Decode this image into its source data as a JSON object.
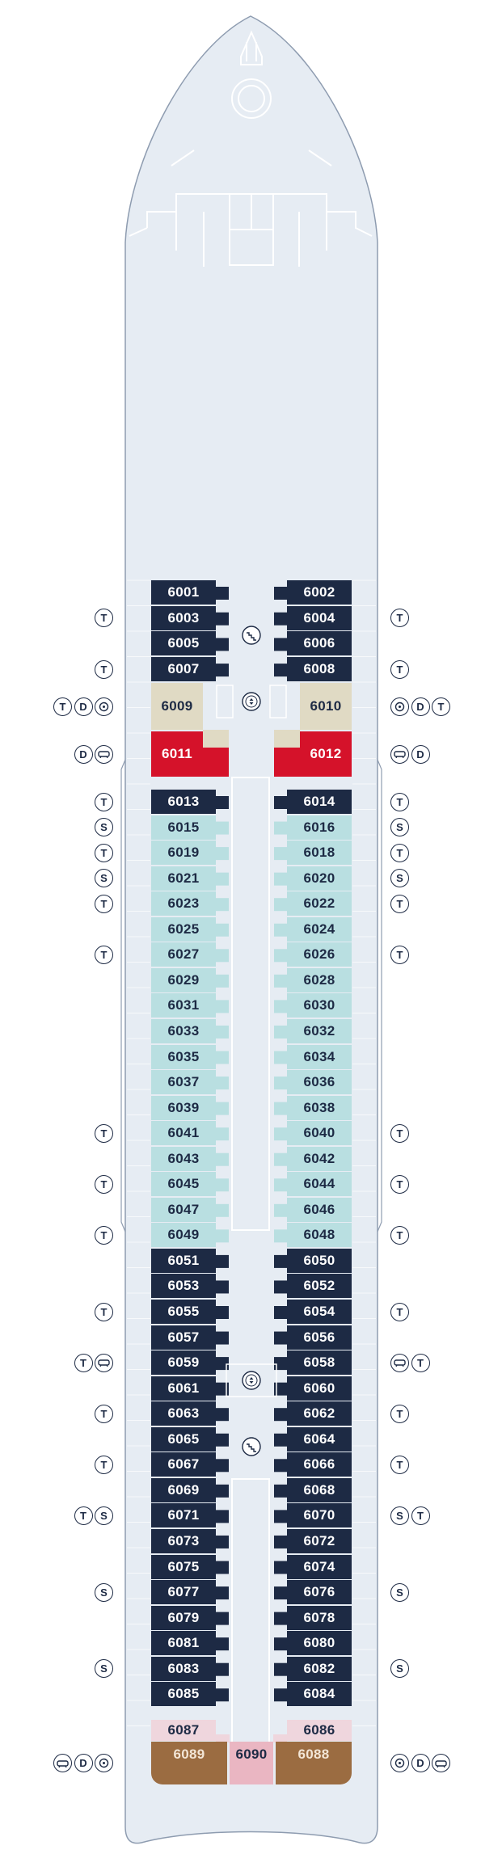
{
  "colors": {
    "hull": "#e6ecf3",
    "hull_outline": "#8e9cb0",
    "dark": "#1d2a44",
    "light_blue": "#b9dfe1",
    "beige": "#e0dac4",
    "red": "#d5122a",
    "pink": "#efd6dd",
    "pink_suite": "#eab6c2",
    "brown": "#9b6c41"
  },
  "legend_symbols": {
    "T": "T",
    "S": "S",
    "D": "D",
    "bathtub": "bathtub-icon",
    "spa": "spa-swirl-icon"
  },
  "left_cabins": [
    {
      "num": "6001",
      "style": "dark"
    },
    {
      "num": "6003",
      "style": "dark"
    },
    {
      "num": "6005",
      "style": "dark"
    },
    {
      "num": "6007",
      "style": "dark"
    },
    {
      "num": "6009",
      "style": "beige"
    },
    {
      "num": "6011",
      "style": "red"
    },
    {
      "num": "6013",
      "style": "dark"
    },
    {
      "num": "6015",
      "style": "light"
    },
    {
      "num": "6019",
      "style": "light"
    },
    {
      "num": "6021",
      "style": "light"
    },
    {
      "num": "6023",
      "style": "light"
    },
    {
      "num": "6025",
      "style": "light"
    },
    {
      "num": "6027",
      "style": "light"
    },
    {
      "num": "6029",
      "style": "light"
    },
    {
      "num": "6031",
      "style": "light"
    },
    {
      "num": "6033",
      "style": "light"
    },
    {
      "num": "6035",
      "style": "light"
    },
    {
      "num": "6037",
      "style": "light"
    },
    {
      "num": "6039",
      "style": "light"
    },
    {
      "num": "6041",
      "style": "light"
    },
    {
      "num": "6043",
      "style": "light"
    },
    {
      "num": "6045",
      "style": "light"
    },
    {
      "num": "6047",
      "style": "light"
    },
    {
      "num": "6049",
      "style": "light"
    },
    {
      "num": "6051",
      "style": "dark"
    },
    {
      "num": "6053",
      "style": "dark"
    },
    {
      "num": "6055",
      "style": "dark"
    },
    {
      "num": "6057",
      "style": "dark"
    },
    {
      "num": "6059",
      "style": "dark"
    },
    {
      "num": "6061",
      "style": "dark"
    },
    {
      "num": "6063",
      "style": "dark"
    },
    {
      "num": "6065",
      "style": "dark"
    },
    {
      "num": "6067",
      "style": "dark"
    },
    {
      "num": "6069",
      "style": "dark"
    },
    {
      "num": "6071",
      "style": "dark"
    },
    {
      "num": "6073",
      "style": "dark"
    },
    {
      "num": "6075",
      "style": "dark"
    },
    {
      "num": "6077",
      "style": "dark"
    },
    {
      "num": "6079",
      "style": "dark"
    },
    {
      "num": "6081",
      "style": "dark"
    },
    {
      "num": "6083",
      "style": "dark"
    },
    {
      "num": "6085",
      "style": "dark"
    },
    {
      "num": "6087",
      "style": "pink"
    },
    {
      "num": "6089",
      "style": "brown"
    }
  ],
  "right_cabins": [
    {
      "num": "6002",
      "style": "dark"
    },
    {
      "num": "6004",
      "style": "dark"
    },
    {
      "num": "6006",
      "style": "dark"
    },
    {
      "num": "6008",
      "style": "dark"
    },
    {
      "num": "6010",
      "style": "beige"
    },
    {
      "num": "6012",
      "style": "red"
    },
    {
      "num": "6014",
      "style": "dark"
    },
    {
      "num": "6016",
      "style": "light"
    },
    {
      "num": "6018",
      "style": "light"
    },
    {
      "num": "6020",
      "style": "light"
    },
    {
      "num": "6022",
      "style": "light"
    },
    {
      "num": "6024",
      "style": "light"
    },
    {
      "num": "6026",
      "style": "light"
    },
    {
      "num": "6028",
      "style": "light"
    },
    {
      "num": "6030",
      "style": "light"
    },
    {
      "num": "6032",
      "style": "light"
    },
    {
      "num": "6034",
      "style": "light"
    },
    {
      "num": "6036",
      "style": "light"
    },
    {
      "num": "6038",
      "style": "light"
    },
    {
      "num": "6040",
      "style": "light"
    },
    {
      "num": "6042",
      "style": "light"
    },
    {
      "num": "6044",
      "style": "light"
    },
    {
      "num": "6046",
      "style": "light"
    },
    {
      "num": "6048",
      "style": "light"
    },
    {
      "num": "6050",
      "style": "dark"
    },
    {
      "num": "6052",
      "style": "dark"
    },
    {
      "num": "6054",
      "style": "dark"
    },
    {
      "num": "6056",
      "style": "dark"
    },
    {
      "num": "6058",
      "style": "dark"
    },
    {
      "num": "6060",
      "style": "dark"
    },
    {
      "num": "6062",
      "style": "dark"
    },
    {
      "num": "6064",
      "style": "dark"
    },
    {
      "num": "6066",
      "style": "dark"
    },
    {
      "num": "6068",
      "style": "dark"
    },
    {
      "num": "6070",
      "style": "dark"
    },
    {
      "num": "6072",
      "style": "dark"
    },
    {
      "num": "6074",
      "style": "dark"
    },
    {
      "num": "6076",
      "style": "dark"
    },
    {
      "num": "6078",
      "style": "dark"
    },
    {
      "num": "6080",
      "style": "dark"
    },
    {
      "num": "6082",
      "style": "dark"
    },
    {
      "num": "6084",
      "style": "dark"
    },
    {
      "num": "6086",
      "style": "pink"
    },
    {
      "num": "6088",
      "style": "brown"
    }
  ],
  "center_suite": {
    "num": "6090",
    "style": "pink_suite"
  },
  "left_symbols": [
    {
      "cabin": "6003",
      "symbols": [
        "T"
      ]
    },
    {
      "cabin": "6007",
      "symbols": [
        "T"
      ]
    },
    {
      "cabin": "6009",
      "symbols": [
        "T",
        "D",
        "spa"
      ]
    },
    {
      "cabin": "6011",
      "symbols": [
        "D",
        "bathtub"
      ]
    },
    {
      "cabin": "6013",
      "symbols": [
        "T"
      ]
    },
    {
      "cabin": "6015",
      "symbols": [
        "S"
      ]
    },
    {
      "cabin": "6019",
      "symbols": [
        "T"
      ]
    },
    {
      "cabin": "6021",
      "symbols": [
        "S"
      ]
    },
    {
      "cabin": "6023",
      "symbols": [
        "T"
      ]
    },
    {
      "cabin": "6027",
      "symbols": [
        "T"
      ]
    },
    {
      "cabin": "6041",
      "symbols": [
        "T"
      ]
    },
    {
      "cabin": "6045",
      "symbols": [
        "T"
      ]
    },
    {
      "cabin": "6049",
      "symbols": [
        "T"
      ]
    },
    {
      "cabin": "6055",
      "symbols": [
        "T"
      ]
    },
    {
      "cabin": "6059",
      "symbols": [
        "T",
        "bathtub"
      ]
    },
    {
      "cabin": "6063",
      "symbols": [
        "T"
      ]
    },
    {
      "cabin": "6067",
      "symbols": [
        "T"
      ]
    },
    {
      "cabin": "6071",
      "symbols": [
        "T",
        "S"
      ]
    },
    {
      "cabin": "6077",
      "symbols": [
        "S"
      ]
    },
    {
      "cabin": "6083",
      "symbols": [
        "S"
      ]
    },
    {
      "cabin": "6089",
      "symbols": [
        "bathtub",
        "D",
        "spa"
      ]
    }
  ],
  "right_symbols": [
    {
      "cabin": "6004",
      "symbols": [
        "T"
      ]
    },
    {
      "cabin": "6008",
      "symbols": [
        "T"
      ]
    },
    {
      "cabin": "6010",
      "symbols": [
        "spa",
        "D",
        "T"
      ]
    },
    {
      "cabin": "6012",
      "symbols": [
        "bathtub",
        "D"
      ]
    },
    {
      "cabin": "6014",
      "symbols": [
        "T"
      ]
    },
    {
      "cabin": "6016",
      "symbols": [
        "S"
      ]
    },
    {
      "cabin": "6018",
      "symbols": [
        "T"
      ]
    },
    {
      "cabin": "6020",
      "symbols": [
        "S"
      ]
    },
    {
      "cabin": "6022",
      "symbols": [
        "T"
      ]
    },
    {
      "cabin": "6026",
      "symbols": [
        "T"
      ]
    },
    {
      "cabin": "6040",
      "symbols": [
        "T"
      ]
    },
    {
      "cabin": "6044",
      "symbols": [
        "T"
      ]
    },
    {
      "cabin": "6048",
      "symbols": [
        "T"
      ]
    },
    {
      "cabin": "6054",
      "symbols": [
        "T"
      ]
    },
    {
      "cabin": "6058",
      "symbols": [
        "bathtub",
        "T"
      ]
    },
    {
      "cabin": "6062",
      "symbols": [
        "T"
      ]
    },
    {
      "cabin": "6066",
      "symbols": [
        "T"
      ]
    },
    {
      "cabin": "6070",
      "symbols": [
        "S",
        "T"
      ]
    },
    {
      "cabin": "6076",
      "symbols": [
        "S"
      ]
    },
    {
      "cabin": "6082",
      "symbols": [
        "S"
      ]
    },
    {
      "cabin": "6088",
      "symbols": [
        "spa",
        "D",
        "bathtub"
      ]
    }
  ]
}
